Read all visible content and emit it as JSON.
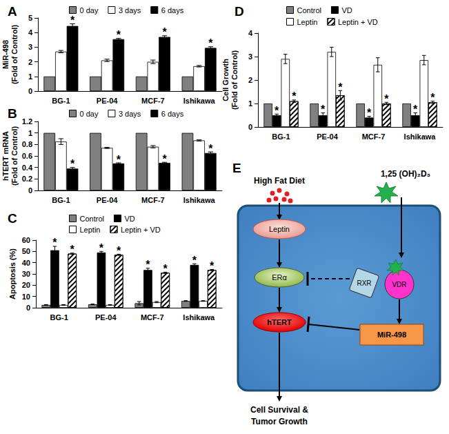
{
  "chart_data": [
    {
      "type": "bar",
      "title": "A",
      "ylabel": "MiR-498\n(Fold of Control)",
      "categories": [
        "BG-1",
        "PE-04",
        "MCF-7",
        "Ishikawa"
      ],
      "series": [
        {
          "name": "0 day",
          "color": "#808080",
          "values": [
            1,
            1,
            1,
            1
          ]
        },
        {
          "name": "3 days",
          "color": "#ffffff",
          "values": [
            2.7,
            2.1,
            2.0,
            1.7
          ],
          "errors": [
            0.08,
            0.08,
            0.12,
            0.05
          ]
        },
        {
          "name": "6 days",
          "color": "#000000",
          "values": [
            4.45,
            3.55,
            3.7,
            2.95
          ],
          "errors": [
            0.15,
            0.05,
            0.08,
            0.08
          ],
          "annotations": [
            "*",
            "*",
            "*",
            "*"
          ]
        }
      ],
      "ylim": [
        0,
        5
      ],
      "yticks": [
        0,
        1,
        2,
        3,
        4,
        5
      ],
      "grid": false,
      "legend": "top"
    },
    {
      "type": "bar",
      "title": "B",
      "ylabel": "hTERT mRNA\n(Fold of Control)",
      "categories": [
        "BG-1",
        "PE-04",
        "MCF-7",
        "Ishikawa"
      ],
      "series": [
        {
          "name": "0 day",
          "color": "#808080",
          "values": [
            1,
            1,
            1,
            1
          ]
        },
        {
          "name": "3 days",
          "color": "#ffffff",
          "values": [
            0.85,
            0.74,
            0.76,
            0.87
          ],
          "errors": [
            0.05,
            0.01,
            0.02,
            0.01
          ]
        },
        {
          "name": "6 days",
          "color": "#000000",
          "values": [
            0.38,
            0.47,
            0.48,
            0.65
          ],
          "errors": [
            0.02,
            0.01,
            0.01,
            0.02
          ],
          "annotations": [
            "*",
            "*",
            "*",
            "*"
          ]
        }
      ],
      "ylim": [
        0,
        1.2
      ],
      "yticks": [
        0,
        0.2,
        0.4,
        0.6,
        0.8,
        1,
        1.2
      ],
      "grid": false,
      "legend": "top"
    },
    {
      "type": "bar",
      "title": "C",
      "ylabel": "Apoptosis (%)",
      "categories": [
        "BG-1",
        "PE-04",
        "MCF-7",
        "Ishikawa"
      ],
      "series": [
        {
          "name": "Control",
          "color": "#808080",
          "values": [
            2.5,
            3,
            4,
            6
          ],
          "errors": [
            0.3,
            0.3,
            1.5,
            0.3
          ]
        },
        {
          "name": "VD",
          "color": "#000000",
          "values": [
            51,
            49,
            33.5,
            38
          ],
          "errors": [
            3.5,
            1,
            1.5,
            1
          ],
          "annotations": [
            "*",
            "*",
            "*",
            "*"
          ]
        },
        {
          "name": "Leptin",
          "color": "#ffffff",
          "values": [
            2.5,
            2.5,
            5,
            6
          ],
          "errors": [
            0.3,
            0.3,
            0.5,
            0.3
          ]
        },
        {
          "name": "Leptin + VD",
          "color": "#ffffff",
          "marker": "hatch",
          "values": [
            48,
            47,
            31,
            33.5
          ],
          "errors": [
            0.5,
            0.5,
            0.5,
            0.5
          ],
          "annotations": [
            "*",
            "*",
            "*",
            "*"
          ]
        }
      ],
      "ylim": [
        0,
        60
      ],
      "yticks": [
        0,
        10,
        20,
        30,
        40,
        50,
        60
      ],
      "grid": false,
      "legend": "top"
    },
    {
      "type": "bar",
      "title": "D",
      "ylabel": "Cell Growth\n(Fold of Control)",
      "categories": [
        "BG-1",
        "PE-04",
        "MCF-7",
        "Ishikawa"
      ],
      "series": [
        {
          "name": "Control",
          "color": "#808080",
          "values": [
            1,
            1,
            1,
            1
          ]
        },
        {
          "name": "VD",
          "color": "#000000",
          "values": [
            0.5,
            0.5,
            0.4,
            0.5
          ],
          "errors": [
            0.05,
            0.1,
            0.05,
            0.1
          ],
          "annotations": [
            "*",
            "*",
            "*",
            "*"
          ]
        },
        {
          "name": "Leptin",
          "color": "#ffffff",
          "values": [
            2.9,
            3.2,
            2.65,
            2.85
          ],
          "errors": [
            0.2,
            0.2,
            0.3,
            0.2
          ]
        },
        {
          "name": "Leptin + VD",
          "color": "#ffffff",
          "marker": "hatch",
          "values": [
            1.1,
            1.35,
            1.0,
            1.05
          ],
          "errors": [
            0.05,
            0.2,
            0.05,
            0.05
          ],
          "annotations": [
            "*",
            "*",
            "*",
            "*"
          ]
        }
      ],
      "ylim": [
        0,
        4
      ],
      "yticks": [
        0,
        1,
        2,
        3,
        4
      ],
      "grid": false,
      "legend": "top"
    }
  ],
  "diagram": {
    "title": "E",
    "nodes": {
      "diet": "High Fat Diet",
      "vitd": "1,25 (OH)₂D₃",
      "leptin": "Leptin",
      "er": "ERα",
      "htert": "hTERT",
      "rxr": "RXR",
      "vdr": "VDR",
      "mir": "MiR-498",
      "outcome": "Cell Survival &\nTumor Growth"
    }
  }
}
